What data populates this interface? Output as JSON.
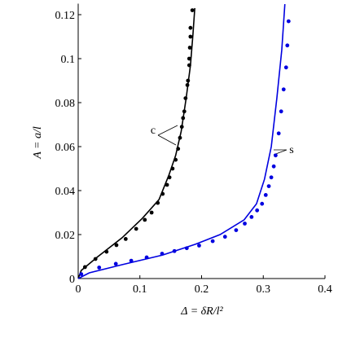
{
  "chart_data": {
    "type": "line",
    "xlabel": "Δ = δR/l²",
    "ylabel": "A = a/l",
    "xlim": [
      0,
      0.4
    ],
    "ylim": [
      0,
      0.125
    ],
    "xticks": [
      0,
      0.1,
      0.2,
      0.3,
      0.4
    ],
    "yticks": [
      0,
      0.02,
      0.04,
      0.06,
      0.08,
      0.1,
      0.12
    ],
    "annotations": [
      {
        "text": "c"
      },
      {
        "text": "s"
      }
    ],
    "series": [
      {
        "style": "markers",
        "color": "#000000",
        "x": [
          0.011,
          0.028,
          0.046,
          0.062,
          0.077,
          0.094,
          0.108,
          0.119,
          0.129,
          0.137,
          0.144,
          0.148,
          0.153,
          0.158,
          0.162,
          0.165,
          0.168,
          0.17,
          0.172,
          0.174,
          0.177,
          0.178,
          0.18,
          0.18,
          0.181,
          0.182,
          0.182,
          0.185
        ],
        "values": [
          0.0052,
          0.0089,
          0.0122,
          0.0152,
          0.018,
          0.0226,
          0.0267,
          0.03,
          0.0344,
          0.0385,
          0.0426,
          0.046,
          0.05,
          0.054,
          0.059,
          0.064,
          0.069,
          0.073,
          0.076,
          0.082,
          0.088,
          0.09,
          0.097,
          0.1,
          0.105,
          0.11,
          0.114,
          0.122
        ]
      },
      {
        "style": "line",
        "color": "#000000",
        "x": [
          0,
          0.005,
          0.032,
          0.071,
          0.104,
          0.131,
          0.147,
          0.158,
          0.167,
          0.175,
          0.182,
          0.186,
          0.189
        ],
        "values": [
          0,
          0.0037,
          0.01,
          0.0185,
          0.0274,
          0.0359,
          0.047,
          0.056,
          0.067,
          0.082,
          0.097,
          0.111,
          0.123
        ]
      },
      {
        "style": "markers",
        "color": "#0000e0",
        "x": [
          0.005,
          0.034,
          0.061,
          0.086,
          0.111,
          0.136,
          0.156,
          0.176,
          0.196,
          0.218,
          0.238,
          0.256,
          0.27,
          0.281,
          0.29,
          0.298,
          0.304,
          0.309,
          0.313,
          0.317,
          0.32,
          0.325,
          0.329,
          0.333,
          0.337,
          0.339,
          0.341
        ],
        "values": [
          0.002,
          0.005,
          0.0067,
          0.0081,
          0.0096,
          0.0113,
          0.0125,
          0.0138,
          0.015,
          0.017,
          0.019,
          0.022,
          0.025,
          0.028,
          0.031,
          0.034,
          0.038,
          0.042,
          0.046,
          0.051,
          0.056,
          0.066,
          0.076,
          0.086,
          0.096,
          0.106,
          0.117
        ]
      },
      {
        "style": "line",
        "color": "#0000e0",
        "x": [
          0,
          0.018,
          0.071,
          0.137,
          0.19,
          0.23,
          0.269,
          0.289,
          0.302,
          0.313,
          0.322,
          0.33,
          0.335
        ],
        "values": [
          0,
          0.0026,
          0.0063,
          0.0107,
          0.0156,
          0.02,
          0.0267,
          0.034,
          0.0452,
          0.06,
          0.082,
          0.104,
          0.1248
        ]
      }
    ]
  }
}
